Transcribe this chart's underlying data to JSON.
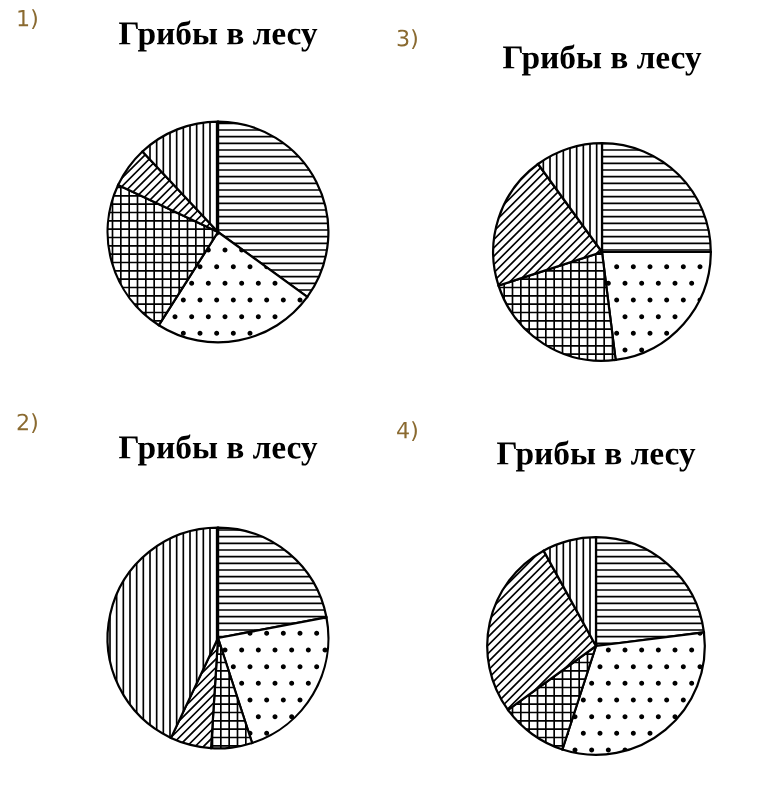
{
  "chart_data": [
    {
      "type": "pie",
      "title": "Грибы в лесу",
      "annotations": [
        "1)"
      ],
      "categories": [
        null,
        null,
        null,
        null,
        null
      ],
      "values": [
        35,
        24,
        23,
        6,
        12
      ]
    },
    {
      "type": "pie",
      "title": "Грибы в лесу",
      "annotations": [
        "2)"
      ],
      "categories": [
        null,
        null,
        null,
        null,
        null
      ],
      "values": [
        22,
        23,
        6,
        6,
        43
      ]
    },
    {
      "type": "pie",
      "title": "Грибы в лесу",
      "annotations": [
        "3)"
      ],
      "categories": [
        null,
        null,
        null,
        null,
        null
      ],
      "values": [
        25,
        23,
        22,
        20,
        10
      ]
    },
    {
      "type": "pie",
      "title": "Грибы в лесу",
      "annotations": [
        "4)"
      ],
      "categories": [
        null,
        null,
        null,
        null,
        null
      ],
      "values": [
        23,
        32,
        10,
        27,
        8
      ]
    }
  ]
}
